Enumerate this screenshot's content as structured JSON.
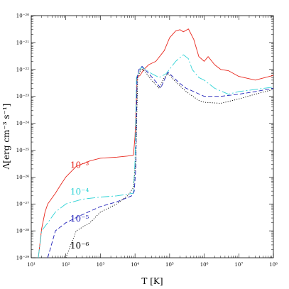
{
  "chart_data": {
    "type": "line",
    "title": "",
    "xlabel": "T [K]",
    "ylabel": "Λ[erg cm⁻³ s⁻¹]",
    "x_scale": "log",
    "y_scale": "log",
    "xlim": [
      10,
      100000000
    ],
    "ylim": [
      1e-29,
      1e-20
    ],
    "x_ticks": [
      {
        "value": 10,
        "label": "10¹"
      },
      {
        "value": 100,
        "label": "10²"
      },
      {
        "value": 1000,
        "label": "10³"
      },
      {
        "value": 10000,
        "label": "10⁴"
      },
      {
        "value": 100000,
        "label": "10⁵"
      },
      {
        "value": 1000000,
        "label": "10⁶"
      },
      {
        "value": 10000000,
        "label": "10⁷"
      },
      {
        "value": 100000000,
        "label": "10⁸"
      }
    ],
    "y_ticks": [
      {
        "value": 1e-29,
        "label": "10⁻²⁹"
      },
      {
        "value": 1e-28,
        "label": "10⁻²⁸"
      },
      {
        "value": 1e-27,
        "label": "10⁻²⁷"
      },
      {
        "value": 1e-26,
        "label": "10⁻²⁶"
      },
      {
        "value": 1e-25,
        "label": "10⁻²⁵"
      },
      {
        "value": 1e-24,
        "label": "10⁻²⁴"
      },
      {
        "value": 1e-23,
        "label": "10⁻²³"
      },
      {
        "value": 1e-22,
        "label": "10⁻²²"
      },
      {
        "value": 1e-21,
        "label": "10⁻²¹"
      },
      {
        "value": 1e-20,
        "label": "10⁻²⁰"
      }
    ],
    "grid": false,
    "legend": "inline labels",
    "series": [
      {
        "name": "10⁻³",
        "color": "#e8281e",
        "dash": "solid",
        "label_at": [
          250,
          2.2e-26
        ],
        "points": [
          [
            16,
            1e-29
          ],
          [
            20,
            1.2e-28
          ],
          [
            25,
            5e-28
          ],
          [
            30,
            1e-27
          ],
          [
            50,
            2.5e-27
          ],
          [
            70,
            5e-27
          ],
          [
            100,
            1e-26
          ],
          [
            200,
            2.5e-26
          ],
          [
            500,
            4e-26
          ],
          [
            1000,
            5e-26
          ],
          [
            3000,
            5.5e-26
          ],
          [
            6000,
            6e-26
          ],
          [
            9000,
            6.5e-26
          ],
          [
            10000,
            3.2e-25
          ],
          [
            11500,
            5e-23
          ],
          [
            14000,
            6e-23
          ],
          [
            18000,
            1e-22
          ],
          [
            25000,
            1.5e-22
          ],
          [
            40000,
            2e-22
          ],
          [
            70000,
            5e-22
          ],
          [
            100000,
            1.5e-21
          ],
          [
            150000,
            2.7e-21
          ],
          [
            200000,
            3e-21
          ],
          [
            250000,
            2.5e-21
          ],
          [
            350000,
            3.2e-21
          ],
          [
            500000,
            1.3e-21
          ],
          [
            700000,
            3e-22
          ],
          [
            1000000,
            2e-22
          ],
          [
            1300000,
            3e-22
          ],
          [
            2000000,
            1.5e-22
          ],
          [
            3000000,
            1e-22
          ],
          [
            5000000,
            9e-23
          ],
          [
            10000000,
            5.5e-23
          ],
          [
            30000000,
            4e-23
          ],
          [
            100000000,
            6e-23
          ]
        ]
      },
      {
        "name": "10⁻⁴",
        "color": "#2fd3d6",
        "dash": "12,3,2,3",
        "label_at": [
          250,
          2.2e-27
        ],
        "points": [
          [
            16,
            1e-29
          ],
          [
            20,
            1e-28
          ],
          [
            30,
            2e-28
          ],
          [
            50,
            5e-28
          ],
          [
            100,
            1e-27
          ],
          [
            300,
            1.5e-27
          ],
          [
            1000,
            1.8e-27
          ],
          [
            3000,
            2e-27
          ],
          [
            9000,
            2.5e-27
          ],
          [
            10000,
            4e-26
          ],
          [
            11000,
            5e-23
          ],
          [
            15000,
            1.2e-22
          ],
          [
            20000,
            1e-22
          ],
          [
            30000,
            7e-23
          ],
          [
            50000,
            5e-23
          ],
          [
            80000,
            7e-23
          ],
          [
            150000,
            2e-22
          ],
          [
            250000,
            3.5e-22
          ],
          [
            350000,
            2.5e-22
          ],
          [
            450000,
            1e-22
          ],
          [
            700000,
            5e-23
          ],
          [
            1000000,
            4e-23
          ],
          [
            2000000,
            2e-23
          ],
          [
            5000000,
            1.2e-23
          ],
          [
            10000000,
            1.5e-23
          ],
          [
            30000000,
            1.8e-23
          ],
          [
            100000000,
            2.2e-23
          ]
        ]
      },
      {
        "name": "10⁻⁵",
        "color": "#1f1fb8",
        "dash": "6,3",
        "label_at": [
          250,
          2.2e-28
        ],
        "points": [
          [
            30,
            1e-29
          ],
          [
            50,
            1e-28
          ],
          [
            100,
            2e-28
          ],
          [
            300,
            4e-28
          ],
          [
            1000,
            8e-28
          ],
          [
            3000,
            1.2e-27
          ],
          [
            8000,
            2e-27
          ],
          [
            9500,
            3e-27
          ],
          [
            10500,
            2e-26
          ],
          [
            11500,
            5e-23
          ],
          [
            13000,
            1e-22
          ],
          [
            16000,
            1.3e-22
          ],
          [
            25000,
            7e-23
          ],
          [
            40000,
            3.5e-23
          ],
          [
            55000,
            2e-23
          ],
          [
            70000,
            4e-23
          ],
          [
            90000,
            8e-23
          ],
          [
            130000,
            5e-23
          ],
          [
            200000,
            3e-23
          ],
          [
            300000,
            2e-23
          ],
          [
            500000,
            1.5e-23
          ],
          [
            1000000,
            1e-23
          ],
          [
            3000000,
            1e-23
          ],
          [
            10000000,
            1.2e-23
          ],
          [
            30000000,
            1.5e-23
          ],
          [
            100000000,
            2e-23
          ]
        ]
      },
      {
        "name": "10⁻⁶",
        "color": "#000000",
        "dash": "1.2,2",
        "label_at": [
          250,
          2.2e-29
        ],
        "points": [
          [
            100,
            1e-29
          ],
          [
            200,
            1e-28
          ],
          [
            500,
            2e-28
          ],
          [
            1000,
            5e-28
          ],
          [
            3000,
            1e-27
          ],
          [
            6000,
            2e-27
          ],
          [
            9000,
            4e-27
          ],
          [
            10500,
            4e-26
          ],
          [
            12000,
            5e-23
          ],
          [
            15000,
            1.1e-22
          ],
          [
            20000,
            8e-23
          ],
          [
            30000,
            4e-23
          ],
          [
            50000,
            2e-23
          ],
          [
            70000,
            5e-23
          ],
          [
            90000,
            7e-23
          ],
          [
            150000,
            3.5e-23
          ],
          [
            300000,
            1.5e-23
          ],
          [
            700000,
            7e-24
          ],
          [
            1000000,
            6e-24
          ],
          [
            3000000,
            5.5e-24
          ],
          [
            10000000,
            8e-24
          ],
          [
            30000000,
            1.2e-23
          ],
          [
            100000000,
            1.8e-23
          ]
        ]
      }
    ]
  }
}
